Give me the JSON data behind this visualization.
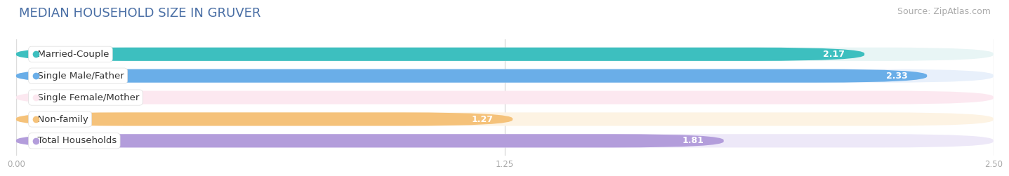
{
  "title": "MEDIAN HOUSEHOLD SIZE IN GRUVER",
  "source": "Source: ZipAtlas.com",
  "categories": [
    "Married-Couple",
    "Single Male/Father",
    "Single Female/Mother",
    "Non-family",
    "Total Households"
  ],
  "values": [
    2.17,
    2.33,
    0.0,
    1.27,
    1.81
  ],
  "bar_colors": [
    "#3dbfbf",
    "#6aaee8",
    "#f48fb1",
    "#f5c27a",
    "#b39ddb"
  ],
  "bar_bg_colors": [
    "#e8f5f5",
    "#e8f0fb",
    "#fce8f0",
    "#fdf3e3",
    "#ede8f8"
  ],
  "label_dot_colors": [
    "#3dbfbf",
    "#6aaee8",
    "#f48fb1",
    "#f5c27a",
    "#b39ddb"
  ],
  "xlim": [
    0,
    2.5
  ],
  "xticks": [
    0.0,
    1.25,
    2.5
  ],
  "xtick_labels": [
    "0.00",
    "1.25",
    "2.50"
  ],
  "title_fontsize": 13,
  "source_fontsize": 9,
  "label_fontsize": 9.5,
  "value_fontsize": 9,
  "background_color": "#ffffff",
  "bar_height": 0.62,
  "bar_label_color_inside": "#ffffff",
  "bar_label_color_outside": "#888888",
  "grid_color": "#dddddd",
  "title_color": "#4a6fa5"
}
